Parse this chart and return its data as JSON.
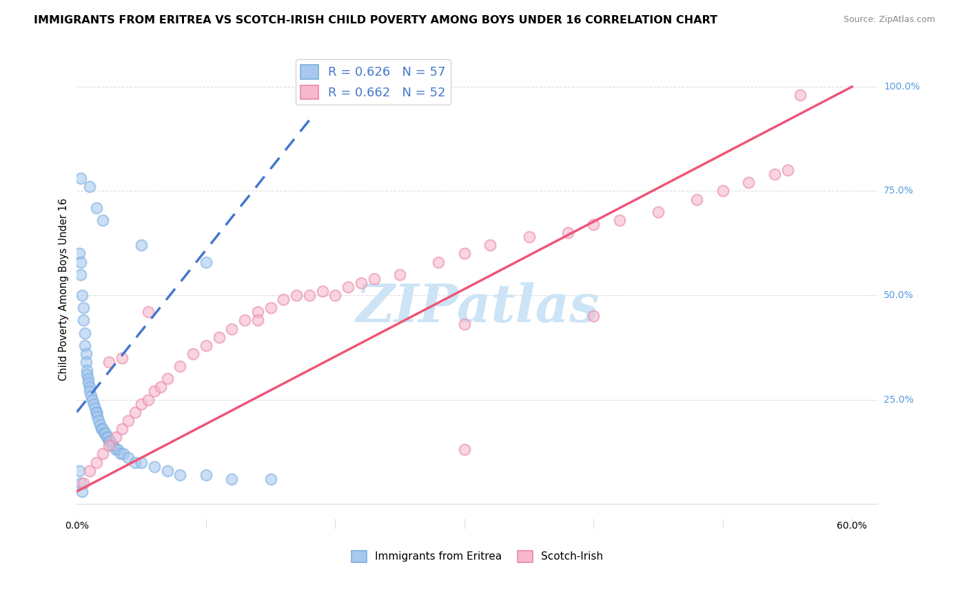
{
  "title": "IMMIGRANTS FROM ERITREA VS SCOTCH-IRISH CHILD POVERTY AMONG BOYS UNDER 16 CORRELATION CHART",
  "source": "Source: ZipAtlas.com",
  "ylabel": "Child Poverty Among Boys Under 16",
  "y_ticks": [
    0.0,
    0.25,
    0.5,
    0.75,
    1.0
  ],
  "x_ticks": [
    0.0,
    0.1,
    0.2,
    0.3,
    0.4,
    0.5,
    0.6
  ],
  "xlim": [
    0.0,
    0.62
  ],
  "ylim": [
    -0.05,
    1.08
  ],
  "legend_r1": "R = 0.626",
  "legend_n1": "N = 57",
  "legend_r2": "R = 0.662",
  "legend_n2": "N = 52",
  "legend_label1": "Immigrants from Eritrea",
  "legend_label2": "Scotch-Irish",
  "watermark_color": "#cce4f5",
  "blue_face_color": "#a8c8f0",
  "blue_edge_color": "#7aaee0",
  "pink_face_color": "#f8b8cc",
  "pink_edge_color": "#e888a8",
  "blue_line_color": "#4477cc",
  "pink_line_color": "#ee5577",
  "R_color": "#4477cc",
  "background_color": "#ffffff",
  "grid_color": "#dddddd",
  "right_tick_color": "#5599dd",
  "title_fontsize": 11.5,
  "axis_label_fontsize": 10.5,
  "tick_fontsize": 10,
  "blue_scatter": [
    [
      0.002,
      0.6
    ],
    [
      0.003,
      0.55
    ],
    [
      0.004,
      0.5
    ],
    [
      0.005,
      0.47
    ],
    [
      0.005,
      0.44
    ],
    [
      0.006,
      0.41
    ],
    [
      0.006,
      0.38
    ],
    [
      0.007,
      0.36
    ],
    [
      0.007,
      0.34
    ],
    [
      0.008,
      0.32
    ],
    [
      0.008,
      0.31
    ],
    [
      0.009,
      0.3
    ],
    [
      0.009,
      0.29
    ],
    [
      0.01,
      0.28
    ],
    [
      0.01,
      0.27
    ],
    [
      0.011,
      0.26
    ],
    [
      0.012,
      0.25
    ],
    [
      0.013,
      0.24
    ],
    [
      0.014,
      0.23
    ],
    [
      0.015,
      0.22
    ],
    [
      0.015,
      0.22
    ],
    [
      0.016,
      0.21
    ],
    [
      0.017,
      0.2
    ],
    [
      0.018,
      0.19
    ],
    [
      0.019,
      0.18
    ],
    [
      0.02,
      0.18
    ],
    [
      0.021,
      0.17
    ],
    [
      0.022,
      0.17
    ],
    [
      0.023,
      0.16
    ],
    [
      0.024,
      0.16
    ],
    [
      0.025,
      0.15
    ],
    [
      0.026,
      0.15
    ],
    [
      0.027,
      0.14
    ],
    [
      0.028,
      0.14
    ],
    [
      0.03,
      0.13
    ],
    [
      0.032,
      0.13
    ],
    [
      0.034,
      0.12
    ],
    [
      0.036,
      0.12
    ],
    [
      0.04,
      0.11
    ],
    [
      0.045,
      0.1
    ],
    [
      0.05,
      0.1
    ],
    [
      0.06,
      0.09
    ],
    [
      0.07,
      0.08
    ],
    [
      0.08,
      0.07
    ],
    [
      0.1,
      0.07
    ],
    [
      0.12,
      0.06
    ],
    [
      0.15,
      0.06
    ],
    [
      0.003,
      0.78
    ],
    [
      0.01,
      0.76
    ],
    [
      0.015,
      0.71
    ],
    [
      0.02,
      0.68
    ],
    [
      0.05,
      0.62
    ],
    [
      0.1,
      0.58
    ],
    [
      0.002,
      0.08
    ],
    [
      0.003,
      0.05
    ],
    [
      0.004,
      0.03
    ],
    [
      0.003,
      0.58
    ]
  ],
  "pink_scatter": [
    [
      0.005,
      0.05
    ],
    [
      0.01,
      0.08
    ],
    [
      0.015,
      0.1
    ],
    [
      0.02,
      0.12
    ],
    [
      0.025,
      0.14
    ],
    [
      0.03,
      0.16
    ],
    [
      0.035,
      0.18
    ],
    [
      0.04,
      0.2
    ],
    [
      0.045,
      0.22
    ],
    [
      0.05,
      0.24
    ],
    [
      0.055,
      0.25
    ],
    [
      0.06,
      0.27
    ],
    [
      0.065,
      0.28
    ],
    [
      0.07,
      0.3
    ],
    [
      0.08,
      0.33
    ],
    [
      0.09,
      0.36
    ],
    [
      0.1,
      0.38
    ],
    [
      0.11,
      0.4
    ],
    [
      0.12,
      0.42
    ],
    [
      0.13,
      0.44
    ],
    [
      0.14,
      0.46
    ],
    [
      0.15,
      0.47
    ],
    [
      0.16,
      0.49
    ],
    [
      0.17,
      0.5
    ],
    [
      0.18,
      0.5
    ],
    [
      0.19,
      0.51
    ],
    [
      0.2,
      0.5
    ],
    [
      0.21,
      0.52
    ],
    [
      0.22,
      0.53
    ],
    [
      0.23,
      0.54
    ],
    [
      0.25,
      0.55
    ],
    [
      0.28,
      0.58
    ],
    [
      0.3,
      0.6
    ],
    [
      0.32,
      0.62
    ],
    [
      0.35,
      0.64
    ],
    [
      0.38,
      0.65
    ],
    [
      0.4,
      0.67
    ],
    [
      0.42,
      0.68
    ],
    [
      0.45,
      0.7
    ],
    [
      0.48,
      0.73
    ],
    [
      0.5,
      0.75
    ],
    [
      0.52,
      0.77
    ],
    [
      0.54,
      0.79
    ],
    [
      0.55,
      0.8
    ],
    [
      0.56,
      0.98
    ],
    [
      0.025,
      0.34
    ],
    [
      0.035,
      0.35
    ],
    [
      0.055,
      0.46
    ],
    [
      0.14,
      0.44
    ],
    [
      0.3,
      0.43
    ],
    [
      0.3,
      0.13
    ],
    [
      0.4,
      0.45
    ]
  ],
  "blue_trend_x": [
    0.0,
    0.18
  ],
  "blue_trend_y": [
    0.22,
    0.92
  ],
  "pink_trend_x": [
    0.0,
    0.6
  ],
  "pink_trend_y": [
    0.03,
    1.0
  ]
}
